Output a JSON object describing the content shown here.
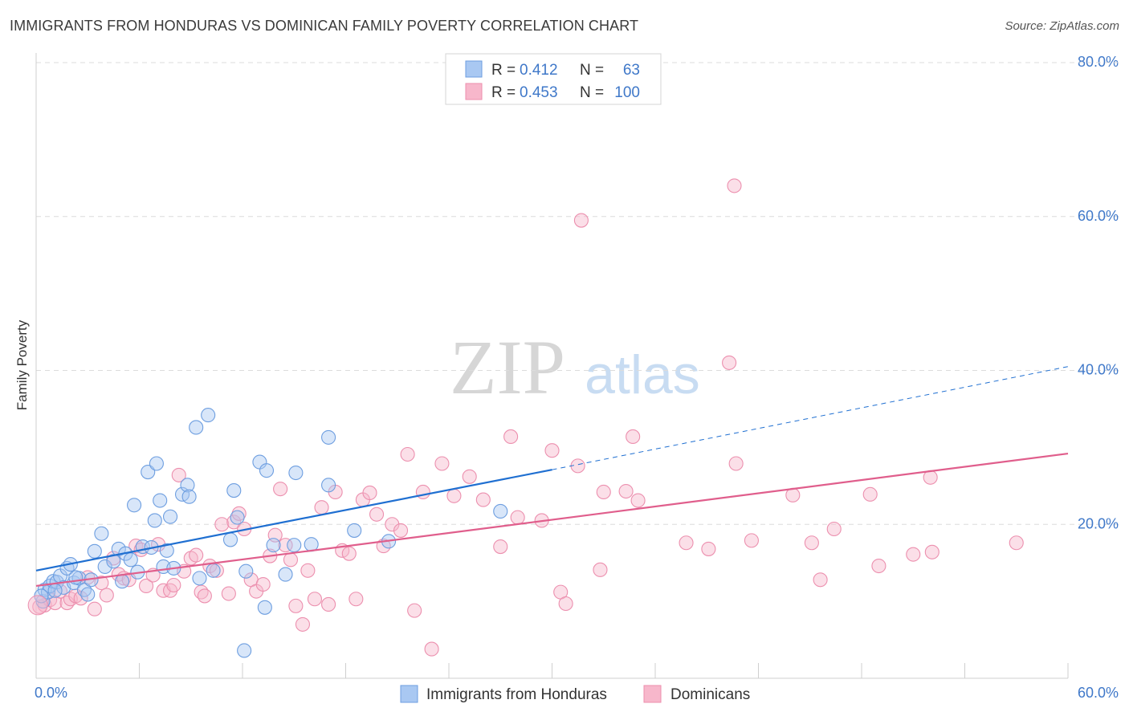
{
  "title": "IMMIGRANTS FROM HONDURAS VS DOMINICAN FAMILY POVERTY CORRELATION CHART",
  "source": "Source: ZipAtlas.com",
  "watermark": {
    "zip": "ZIP",
    "atlas": "atlas"
  },
  "colors": {
    "blue_fill": "#a9c8f2",
    "blue_stroke": "#6d9ee0",
    "blue_line": "#1f6fd1",
    "pink_fill": "#f7b7cb",
    "pink_stroke": "#ec8fae",
    "pink_line": "#e05e8c",
    "tick_text": "#3f78c9",
    "grid": "#dcdcdc"
  },
  "legend": {
    "rows": [
      {
        "r_label": "R =",
        "r_value": "0.412",
        "n_label": "N =",
        "n_value": "63"
      },
      {
        "r_label": "R =",
        "r_value": "0.453",
        "n_label": "N =",
        "n_value": "100"
      }
    ]
  },
  "bottom_legend": [
    "Immigrants from Honduras",
    "Dominicans"
  ],
  "chart_data": {
    "type": "scatter",
    "title": "IMMIGRANTS FROM HONDURAS VS DOMINICAN FAMILY POVERTY CORRELATION CHART",
    "xlabel": "",
    "ylabel": "Family Poverty",
    "xlim": [
      0,
      60
    ],
    "ylim": [
      0,
      80
    ],
    "x_tick_labels": [
      "0.0%",
      "60.0%"
    ],
    "y_ticks": [
      20,
      40,
      60,
      80
    ],
    "y_tick_labels": [
      "20.0%",
      "40.0%",
      "60.0%",
      "80.0%"
    ],
    "grid": true,
    "legend_position": "top-center",
    "series": [
      {
        "name": "Immigrants from Honduras",
        "r": 0.412,
        "n": 63,
        "trend": {
          "x0": 0,
          "y0": 14.0,
          "x1": 30,
          "y1": 27.1,
          "dashed_to_x": 60,
          "dashed_to_y": 40.5
        },
        "points": [
          [
            0.4,
            10.0
          ],
          [
            0.5,
            11.5
          ],
          [
            0.7,
            11.2
          ],
          [
            0.8,
            12.0
          ],
          [
            1.0,
            12.6
          ],
          [
            1.2,
            12.5
          ],
          [
            1.4,
            13.3
          ],
          [
            1.6,
            11.8
          ],
          [
            1.8,
            14.3
          ],
          [
            2.0,
            14.8
          ],
          [
            2.2,
            12.4
          ],
          [
            2.5,
            13.0
          ],
          [
            2.8,
            11.5
          ],
          [
            3.0,
            10.9
          ],
          [
            3.2,
            12.8
          ],
          [
            3.4,
            16.5
          ],
          [
            3.8,
            18.8
          ],
          [
            4.0,
            14.5
          ],
          [
            4.5,
            15.2
          ],
          [
            4.8,
            16.8
          ],
          [
            5.0,
            12.6
          ],
          [
            5.2,
            16.2
          ],
          [
            5.5,
            15.4
          ],
          [
            5.7,
            22.5
          ],
          [
            5.9,
            13.8
          ],
          [
            6.2,
            17.1
          ],
          [
            6.5,
            26.8
          ],
          [
            6.7,
            17.0
          ],
          [
            6.9,
            20.5
          ],
          [
            7.0,
            27.9
          ],
          [
            7.2,
            23.1
          ],
          [
            7.4,
            14.5
          ],
          [
            7.6,
            16.6
          ],
          [
            7.8,
            21.0
          ],
          [
            8.0,
            14.3
          ],
          [
            8.5,
            23.9
          ],
          [
            8.8,
            25.1
          ],
          [
            8.9,
            23.6
          ],
          [
            9.3,
            32.6
          ],
          [
            9.5,
            13.0
          ],
          [
            10.0,
            34.2
          ],
          [
            10.3,
            14.0
          ],
          [
            11.3,
            18.0
          ],
          [
            11.5,
            24.4
          ],
          [
            11.7,
            20.9
          ],
          [
            12.1,
            3.6
          ],
          [
            12.2,
            13.9
          ],
          [
            13.0,
            28.1
          ],
          [
            13.3,
            9.2
          ],
          [
            13.4,
            27.0
          ],
          [
            13.8,
            17.3
          ],
          [
            14.5,
            13.5
          ],
          [
            15.0,
            17.3
          ],
          [
            15.1,
            26.7
          ],
          [
            16.0,
            17.4
          ],
          [
            17.0,
            25.1
          ],
          [
            17.0,
            31.3
          ],
          [
            18.5,
            19.2
          ],
          [
            20.5,
            17.8
          ],
          [
            27.0,
            21.7
          ],
          [
            0.3,
            10.7
          ],
          [
            1.1,
            11.4
          ],
          [
            2.3,
            13.1
          ]
        ]
      },
      {
        "name": "Dominicans",
        "r": 0.453,
        "n": 100,
        "trend": {
          "x0": 0,
          "y0": 12.0,
          "x1": 60,
          "y1": 29.2
        },
        "points": [
          [
            0.2,
            9.3
          ],
          [
            0.5,
            9.5
          ],
          [
            0.8,
            10.2
          ],
          [
            1.1,
            9.8
          ],
          [
            1.4,
            11.3
          ],
          [
            1.8,
            9.8
          ],
          [
            2.0,
            10.3
          ],
          [
            2.3,
            10.7
          ],
          [
            2.6,
            10.4
          ],
          [
            3.0,
            13.1
          ],
          [
            3.4,
            9.0
          ],
          [
            3.8,
            12.4
          ],
          [
            4.1,
            10.8
          ],
          [
            4.5,
            15.6
          ],
          [
            4.8,
            13.5
          ],
          [
            5.1,
            13.0
          ],
          [
            5.4,
            12.8
          ],
          [
            5.8,
            17.2
          ],
          [
            6.1,
            16.7
          ],
          [
            6.4,
            12.0
          ],
          [
            6.8,
            13.4
          ],
          [
            7.1,
            17.4
          ],
          [
            7.4,
            11.4
          ],
          [
            7.8,
            11.4
          ],
          [
            8.0,
            12.1
          ],
          [
            8.3,
            26.4
          ],
          [
            8.6,
            13.9
          ],
          [
            9.0,
            15.6
          ],
          [
            9.3,
            16.0
          ],
          [
            9.6,
            11.2
          ],
          [
            9.8,
            10.7
          ],
          [
            10.1,
            14.6
          ],
          [
            10.5,
            14.0
          ],
          [
            10.8,
            20.0
          ],
          [
            11.2,
            11.0
          ],
          [
            11.5,
            20.3
          ],
          [
            11.8,
            21.4
          ],
          [
            12.1,
            19.4
          ],
          [
            12.5,
            12.8
          ],
          [
            12.8,
            11.3
          ],
          [
            13.2,
            12.2
          ],
          [
            13.6,
            15.9
          ],
          [
            13.9,
            18.6
          ],
          [
            14.2,
            24.6
          ],
          [
            14.5,
            17.3
          ],
          [
            14.8,
            15.4
          ],
          [
            15.1,
            9.4
          ],
          [
            15.5,
            7.0
          ],
          [
            15.8,
            14.0
          ],
          [
            16.2,
            10.3
          ],
          [
            16.6,
            22.2
          ],
          [
            17.0,
            9.6
          ],
          [
            17.4,
            24.2
          ],
          [
            17.8,
            16.6
          ],
          [
            18.2,
            16.2
          ],
          [
            18.6,
            10.3
          ],
          [
            19.0,
            23.2
          ],
          [
            19.4,
            24.1
          ],
          [
            19.8,
            21.3
          ],
          [
            20.2,
            17.2
          ],
          [
            20.7,
            20.0
          ],
          [
            21.2,
            19.2
          ],
          [
            21.6,
            29.1
          ],
          [
            22.0,
            8.8
          ],
          [
            22.5,
            24.2
          ],
          [
            23.0,
            3.8
          ],
          [
            23.6,
            27.9
          ],
          [
            24.3,
            23.7
          ],
          [
            25.2,
            26.2
          ],
          [
            26.0,
            23.2
          ],
          [
            27.0,
            17.1
          ],
          [
            27.6,
            31.4
          ],
          [
            28.0,
            20.9
          ],
          [
            29.4,
            20.5
          ],
          [
            30.0,
            29.6
          ],
          [
            30.5,
            11.2
          ],
          [
            30.8,
            9.7
          ],
          [
            31.5,
            27.6
          ],
          [
            31.7,
            59.5
          ],
          [
            32.8,
            14.1
          ],
          [
            33.0,
            24.2
          ],
          [
            34.3,
            24.3
          ],
          [
            34.7,
            31.4
          ],
          [
            35.0,
            23.1
          ],
          [
            37.8,
            17.6
          ],
          [
            39.1,
            16.8
          ],
          [
            40.3,
            41.0
          ],
          [
            40.7,
            27.9
          ],
          [
            40.6,
            64.0
          ],
          [
            41.6,
            17.9
          ],
          [
            44.0,
            23.8
          ],
          [
            45.1,
            17.6
          ],
          [
            45.6,
            12.8
          ],
          [
            46.4,
            19.4
          ],
          [
            48.5,
            23.9
          ],
          [
            49.0,
            14.6
          ],
          [
            51.0,
            16.1
          ],
          [
            52.0,
            26.1
          ],
          [
            52.1,
            16.4
          ],
          [
            57.0,
            17.6
          ]
        ]
      }
    ]
  }
}
